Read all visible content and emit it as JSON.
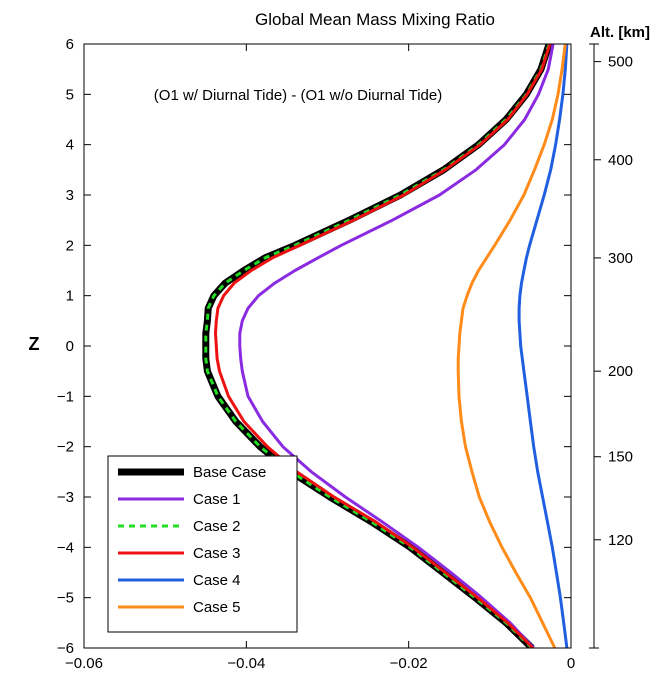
{
  "chart_data": {
    "type": "line",
    "title": "Global Mean Mass Mixing Ratio",
    "annotation": "(O1 w/ Diurnal Tide) - (O1 w/o Diurnal Tide)",
    "xlabel": "",
    "ylabel": "Z",
    "xlim": [
      -0.06,
      0
    ],
    "ylim": [
      -6,
      6
    ],
    "x_ticks": [
      -0.06,
      -0.04,
      -0.02,
      0
    ],
    "x_tick_labels": [
      "−0.06",
      "−0.04",
      "−0.02",
      "0"
    ],
    "y_ticks": [
      -6,
      -5,
      -4,
      -3,
      -2,
      -1,
      0,
      1,
      2,
      3,
      4,
      5,
      6
    ],
    "y_tick_labels": [
      "−6",
      "−5",
      "−4",
      "−3",
      "−2",
      "−1",
      "0",
      "1",
      "2",
      "3",
      "4",
      "5",
      "6"
    ],
    "right_axis": {
      "title": "Alt. [km]",
      "ticks": [
        {
          "label": "500",
          "z": 5.65
        },
        {
          "label": "400",
          "z": 3.7
        },
        {
          "label": "300",
          "z": 1.75
        },
        {
          "label": "200",
          "z": -0.5
        },
        {
          "label": "150",
          "z": -2.2
        },
        {
          "label": "120",
          "z": -3.85
        }
      ]
    },
    "grid": false,
    "legend_position": "bottom-left",
    "z": [
      -6,
      -5.5,
      -5,
      -4.5,
      -4,
      -3.5,
      -3,
      -2.5,
      -2,
      -1.5,
      -1,
      -0.5,
      -0.25,
      0,
      0.25,
      0.5,
      0.75,
      1,
      1.25,
      1.5,
      1.75,
      2,
      2.5,
      3,
      3.5,
      4,
      4.5,
      5,
      5.5,
      6
    ],
    "series": [
      {
        "name": "Base Case",
        "color": "#000000",
        "style": "solid-thick",
        "values": [
          -0.0048,
          -0.008,
          -0.0118,
          -0.0158,
          -0.0198,
          -0.0245,
          -0.0297,
          -0.0345,
          -0.0383,
          -0.0413,
          -0.0435,
          -0.0448,
          -0.045,
          -0.045,
          -0.045,
          -0.0448,
          -0.0447,
          -0.044,
          -0.0426,
          -0.0403,
          -0.0377,
          -0.034,
          -0.0273,
          -0.021,
          -0.0157,
          -0.0114,
          -0.008,
          -0.0055,
          -0.0037,
          -0.0027
        ]
      },
      {
        "name": "Case 1",
        "color": "#8a2be2",
        "style": "solid",
        "values": [
          -0.0046,
          -0.0075,
          -0.011,
          -0.0148,
          -0.0188,
          -0.0232,
          -0.0278,
          -0.032,
          -0.0355,
          -0.038,
          -0.0398,
          -0.0405,
          -0.0407,
          -0.0408,
          -0.0408,
          -0.0405,
          -0.0398,
          -0.0385,
          -0.0365,
          -0.034,
          -0.0312,
          -0.0283,
          -0.022,
          -0.0162,
          -0.0117,
          -0.0082,
          -0.0057,
          -0.004,
          -0.0028,
          -0.0022
        ]
      },
      {
        "name": "Case 2",
        "color": "#22dd22",
        "style": "dashed",
        "values": [
          -0.0048,
          -0.008,
          -0.0118,
          -0.0158,
          -0.0198,
          -0.0245,
          -0.0297,
          -0.0345,
          -0.0383,
          -0.0413,
          -0.0435,
          -0.0448,
          -0.045,
          -0.045,
          -0.045,
          -0.0448,
          -0.0447,
          -0.044,
          -0.0426,
          -0.0403,
          -0.0377,
          -0.034,
          -0.0273,
          -0.021,
          -0.0157,
          -0.0114,
          -0.008,
          -0.0055,
          -0.0037,
          -0.0027
        ]
      },
      {
        "name": "Case 3",
        "color": "#ee1111",
        "style": "solid",
        "values": [
          -0.0047,
          -0.0078,
          -0.0115,
          -0.0155,
          -0.0195,
          -0.024,
          -0.0292,
          -0.0338,
          -0.0374,
          -0.0403,
          -0.0422,
          -0.0433,
          -0.0436,
          -0.0437,
          -0.0438,
          -0.0437,
          -0.0435,
          -0.0428,
          -0.0415,
          -0.0394,
          -0.0368,
          -0.0334,
          -0.0268,
          -0.0206,
          -0.0155,
          -0.0112,
          -0.0078,
          -0.0054,
          -0.0036,
          -0.0026
        ]
      },
      {
        "name": "Case 4",
        "color": "#1f5fe0",
        "style": "solid",
        "values": [
          -0.0005,
          -0.0009,
          -0.0013,
          -0.0018,
          -0.0023,
          -0.0029,
          -0.0035,
          -0.0041,
          -0.0046,
          -0.005,
          -0.0054,
          -0.0058,
          -0.006,
          -0.0062,
          -0.0063,
          -0.0064,
          -0.0064,
          -0.0063,
          -0.0061,
          -0.0058,
          -0.0055,
          -0.0051,
          -0.0042,
          -0.0033,
          -0.0025,
          -0.0019,
          -0.0014,
          -0.001,
          -0.0007,
          -0.0005
        ]
      },
      {
        "name": "Case 5",
        "color": "#ff8c1a",
        "style": "solid",
        "values": [
          -0.002,
          -0.0035,
          -0.005,
          -0.0068,
          -0.0085,
          -0.01,
          -0.0113,
          -0.0122,
          -0.013,
          -0.0135,
          -0.0138,
          -0.0139,
          -0.0139,
          -0.0138,
          -0.0137,
          -0.0135,
          -0.0133,
          -0.0128,
          -0.0122,
          -0.0114,
          -0.0104,
          -0.0094,
          -0.0075,
          -0.0058,
          -0.0045,
          -0.0033,
          -0.0023,
          -0.0016,
          -0.0011,
          -0.0007
        ]
      }
    ]
  }
}
